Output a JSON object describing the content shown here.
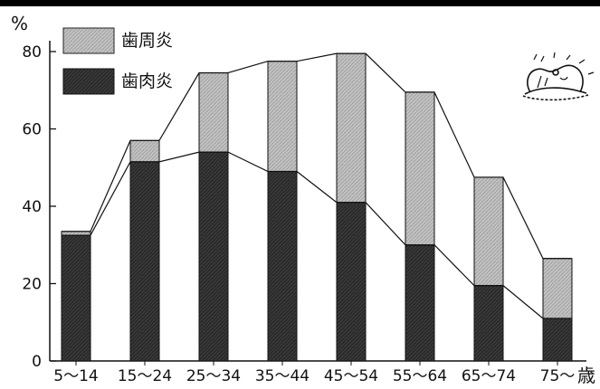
{
  "chart_data": {
    "type": "bar",
    "stacked": true,
    "y_unit": "%",
    "x_unit": "歳",
    "categories": [
      "5〜14",
      "15〜24",
      "25〜34",
      "35〜44",
      "45〜54",
      "55〜64",
      "65〜74",
      "75〜"
    ],
    "series": [
      {
        "name": "歯肉炎",
        "color": "#262626",
        "values": [
          32.5,
          51.5,
          54,
          49,
          41,
          30,
          19.5,
          11
        ]
      },
      {
        "name": "歯周炎",
        "color": "#b9b9b9",
        "values": [
          1,
          5.5,
          20.5,
          28.5,
          38.5,
          39.5,
          28,
          15.5
        ]
      }
    ],
    "ylim": [
      0,
      80
    ],
    "yticks": [
      0,
      20,
      40,
      60,
      80
    ],
    "grid": false,
    "legend_position": "top-left",
    "connector_lines": true,
    "illustration": "tooth-cartoon"
  }
}
